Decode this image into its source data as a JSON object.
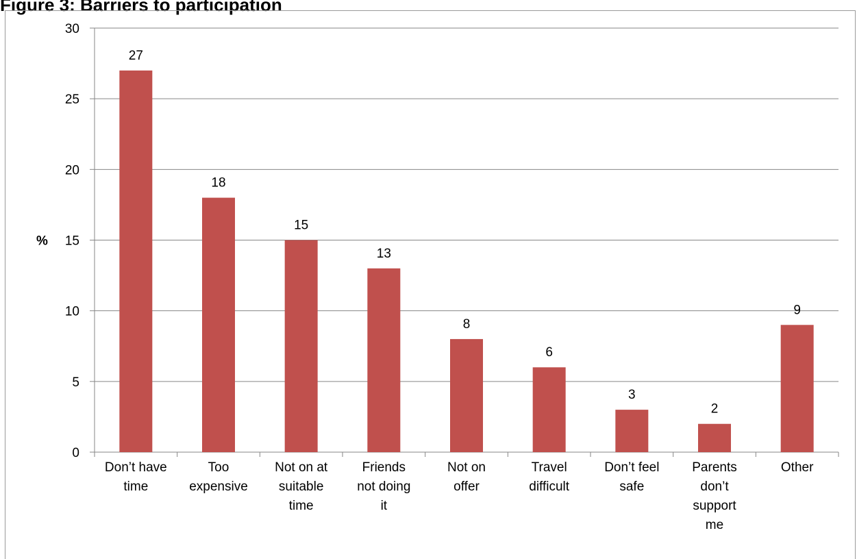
{
  "figure": {
    "title": "Figure 3: Barriers to participation"
  },
  "colors": {
    "bar": "#C0504D",
    "grid": "#868686",
    "axis": "#868686"
  },
  "chart_data": {
    "type": "bar",
    "categories": [
      "Don’t have time",
      "Too expensive",
      "Not on at suitable time",
      "Friends not doing it",
      "Not on offer",
      "Travel difficult",
      "Don’t feel safe",
      "Parents don’t support me",
      "Other"
    ],
    "category_label_lines": [
      [
        "Don’t have",
        "time"
      ],
      [
        "Too",
        "expensive"
      ],
      [
        "Not on at",
        "suitable",
        "time"
      ],
      [
        "Friends",
        "not doing",
        "it"
      ],
      [
        "Not on",
        "offer"
      ],
      [
        "Travel",
        "difficult"
      ],
      [
        "Don’t feel",
        "safe"
      ],
      [
        "Parents",
        "don’t",
        "support",
        "me"
      ],
      [
        "Other"
      ]
    ],
    "values": [
      27,
      18,
      15,
      13,
      8,
      6,
      3,
      2,
      9
    ],
    "ylabel": "%",
    "ylim": [
      0,
      30
    ],
    "yticks": [
      0,
      5,
      10,
      15,
      20,
      25,
      30
    ],
    "grid": true,
    "data_labels": true
  }
}
